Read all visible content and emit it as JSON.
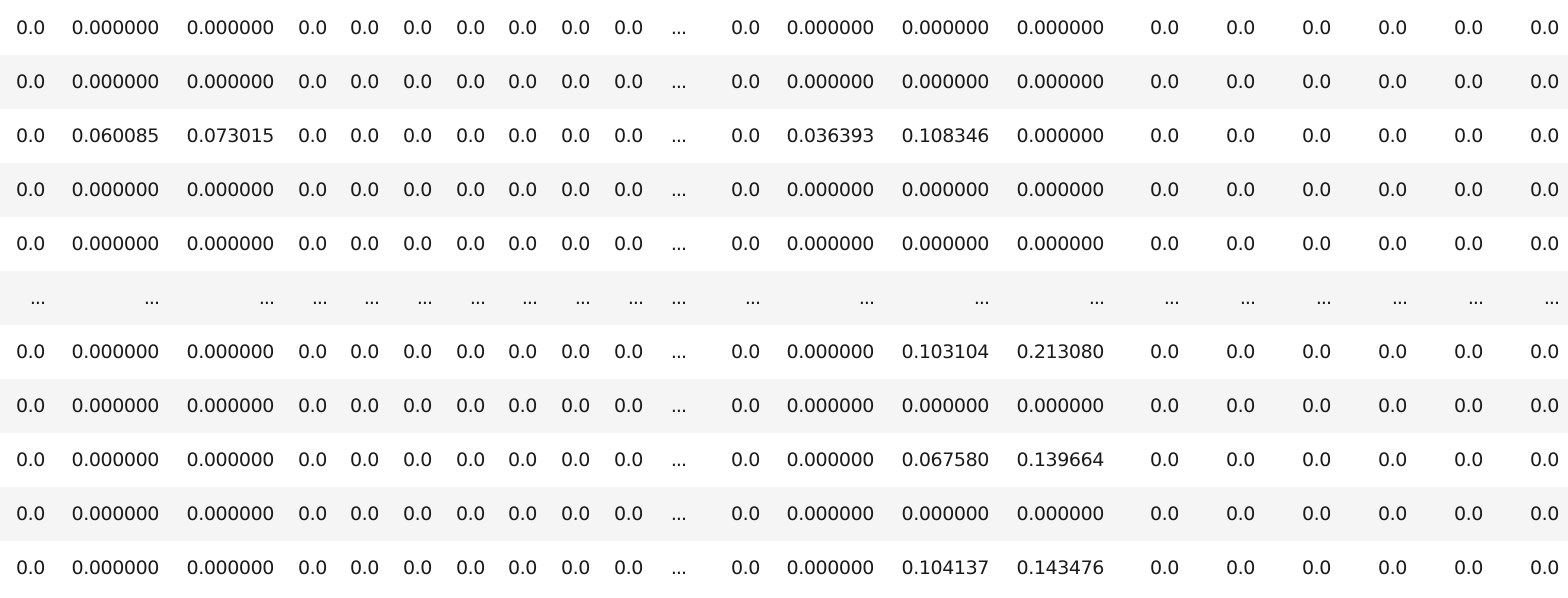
{
  "dataframe": {
    "rows": [
      [
        "0.0",
        "0.000000",
        "0.000000",
        "0.0",
        "0.0",
        "0.0",
        "0.0",
        "0.0",
        "0.0",
        "0.0",
        "...",
        "0.0",
        "0.000000",
        "0.000000",
        "0.000000",
        "0.0",
        "0.0",
        "0.0",
        "0.0",
        "0.0",
        "0.0"
      ],
      [
        "0.0",
        "0.000000",
        "0.000000",
        "0.0",
        "0.0",
        "0.0",
        "0.0",
        "0.0",
        "0.0",
        "0.0",
        "...",
        "0.0",
        "0.000000",
        "0.000000",
        "0.000000",
        "0.0",
        "0.0",
        "0.0",
        "0.0",
        "0.0",
        "0.0"
      ],
      [
        "0.0",
        "0.060085",
        "0.073015",
        "0.0",
        "0.0",
        "0.0",
        "0.0",
        "0.0",
        "0.0",
        "0.0",
        "...",
        "0.0",
        "0.036393",
        "0.108346",
        "0.000000",
        "0.0",
        "0.0",
        "0.0",
        "0.0",
        "0.0",
        "0.0"
      ],
      [
        "0.0",
        "0.000000",
        "0.000000",
        "0.0",
        "0.0",
        "0.0",
        "0.0",
        "0.0",
        "0.0",
        "0.0",
        "...",
        "0.0",
        "0.000000",
        "0.000000",
        "0.000000",
        "0.0",
        "0.0",
        "0.0",
        "0.0",
        "0.0",
        "0.0"
      ],
      [
        "0.0",
        "0.000000",
        "0.000000",
        "0.0",
        "0.0",
        "0.0",
        "0.0",
        "0.0",
        "0.0",
        "0.0",
        "...",
        "0.0",
        "0.000000",
        "0.000000",
        "0.000000",
        "0.0",
        "0.0",
        "0.0",
        "0.0",
        "0.0",
        "0.0"
      ],
      [
        "...",
        "...",
        "...",
        "...",
        "...",
        "...",
        "...",
        "...",
        "...",
        "...",
        "...",
        "...",
        "...",
        "...",
        "...",
        "...",
        "...",
        "...",
        "...",
        "...",
        "..."
      ],
      [
        "0.0",
        "0.000000",
        "0.000000",
        "0.0",
        "0.0",
        "0.0",
        "0.0",
        "0.0",
        "0.0",
        "0.0",
        "...",
        "0.0",
        "0.000000",
        "0.103104",
        "0.213080",
        "0.0",
        "0.0",
        "0.0",
        "0.0",
        "0.0",
        "0.0"
      ],
      [
        "0.0",
        "0.000000",
        "0.000000",
        "0.0",
        "0.0",
        "0.0",
        "0.0",
        "0.0",
        "0.0",
        "0.0",
        "...",
        "0.0",
        "0.000000",
        "0.000000",
        "0.000000",
        "0.0",
        "0.0",
        "0.0",
        "0.0",
        "0.0",
        "0.0"
      ],
      [
        "0.0",
        "0.000000",
        "0.000000",
        "0.0",
        "0.0",
        "0.0",
        "0.0",
        "0.0",
        "0.0",
        "0.0",
        "...",
        "0.0",
        "0.000000",
        "0.067580",
        "0.139664",
        "0.0",
        "0.0",
        "0.0",
        "0.0",
        "0.0",
        "0.0"
      ],
      [
        "0.0",
        "0.000000",
        "0.000000",
        "0.0",
        "0.0",
        "0.0",
        "0.0",
        "0.0",
        "0.0",
        "0.0",
        "...",
        "0.0",
        "0.000000",
        "0.000000",
        "0.000000",
        "0.0",
        "0.0",
        "0.0",
        "0.0",
        "0.0",
        "0.0"
      ],
      [
        "0.0",
        "0.000000",
        "0.000000",
        "0.0",
        "0.0",
        "0.0",
        "0.0",
        "0.0",
        "0.0",
        "0.0",
        "...",
        "0.0",
        "0.000000",
        "0.104137",
        "0.143476",
        "0.0",
        "0.0",
        "0.0",
        "0.0",
        "0.0",
        "0.0"
      ]
    ]
  }
}
